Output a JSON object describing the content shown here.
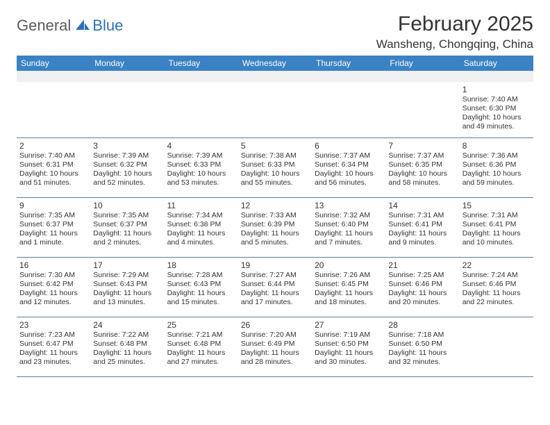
{
  "brand": {
    "general": "General",
    "blue": "Blue"
  },
  "title": "February 2025",
  "location": "Wansheng, Chongqing, China",
  "colors": {
    "header_bg": "#3a82c4",
    "header_text": "#ffffff",
    "border": "#5a7da0",
    "blank_row": "#f0f0f0",
    "text": "#333333",
    "logo_gray": "#5a5a5a",
    "logo_blue": "#2b72b8"
  },
  "typography": {
    "title_fontsize": 30,
    "location_fontsize": 17,
    "header_fontsize": 12,
    "daynum_fontsize": 12,
    "body_fontsize": 10.5,
    "font_family": "Arial"
  },
  "weekdays": [
    "Sunday",
    "Monday",
    "Tuesday",
    "Wednesday",
    "Thursday",
    "Friday",
    "Saturday"
  ],
  "weeks": [
    [
      null,
      null,
      null,
      null,
      null,
      null,
      {
        "n": "1",
        "sr": "Sunrise: 7:40 AM",
        "ss": "Sunset: 6:30 PM",
        "dl1": "Daylight: 10 hours",
        "dl2": "and 49 minutes."
      }
    ],
    [
      {
        "n": "2",
        "sr": "Sunrise: 7:40 AM",
        "ss": "Sunset: 6:31 PM",
        "dl1": "Daylight: 10 hours",
        "dl2": "and 51 minutes."
      },
      {
        "n": "3",
        "sr": "Sunrise: 7:39 AM",
        "ss": "Sunset: 6:32 PM",
        "dl1": "Daylight: 10 hours",
        "dl2": "and 52 minutes."
      },
      {
        "n": "4",
        "sr": "Sunrise: 7:39 AM",
        "ss": "Sunset: 6:33 PM",
        "dl1": "Daylight: 10 hours",
        "dl2": "and 53 minutes."
      },
      {
        "n": "5",
        "sr": "Sunrise: 7:38 AM",
        "ss": "Sunset: 6:33 PM",
        "dl1": "Daylight: 10 hours",
        "dl2": "and 55 minutes."
      },
      {
        "n": "6",
        "sr": "Sunrise: 7:37 AM",
        "ss": "Sunset: 6:34 PM",
        "dl1": "Daylight: 10 hours",
        "dl2": "and 56 minutes."
      },
      {
        "n": "7",
        "sr": "Sunrise: 7:37 AM",
        "ss": "Sunset: 6:35 PM",
        "dl1": "Daylight: 10 hours",
        "dl2": "and 58 minutes."
      },
      {
        "n": "8",
        "sr": "Sunrise: 7:36 AM",
        "ss": "Sunset: 6:36 PM",
        "dl1": "Daylight: 10 hours",
        "dl2": "and 59 minutes."
      }
    ],
    [
      {
        "n": "9",
        "sr": "Sunrise: 7:35 AM",
        "ss": "Sunset: 6:37 PM",
        "dl1": "Daylight: 11 hours",
        "dl2": "and 1 minute."
      },
      {
        "n": "10",
        "sr": "Sunrise: 7:35 AM",
        "ss": "Sunset: 6:37 PM",
        "dl1": "Daylight: 11 hours",
        "dl2": "and 2 minutes."
      },
      {
        "n": "11",
        "sr": "Sunrise: 7:34 AM",
        "ss": "Sunset: 6:38 PM",
        "dl1": "Daylight: 11 hours",
        "dl2": "and 4 minutes."
      },
      {
        "n": "12",
        "sr": "Sunrise: 7:33 AM",
        "ss": "Sunset: 6:39 PM",
        "dl1": "Daylight: 11 hours",
        "dl2": "and 5 minutes."
      },
      {
        "n": "13",
        "sr": "Sunrise: 7:32 AM",
        "ss": "Sunset: 6:40 PM",
        "dl1": "Daylight: 11 hours",
        "dl2": "and 7 minutes."
      },
      {
        "n": "14",
        "sr": "Sunrise: 7:31 AM",
        "ss": "Sunset: 6:41 PM",
        "dl1": "Daylight: 11 hours",
        "dl2": "and 9 minutes."
      },
      {
        "n": "15",
        "sr": "Sunrise: 7:31 AM",
        "ss": "Sunset: 6:41 PM",
        "dl1": "Daylight: 11 hours",
        "dl2": "and 10 minutes."
      }
    ],
    [
      {
        "n": "16",
        "sr": "Sunrise: 7:30 AM",
        "ss": "Sunset: 6:42 PM",
        "dl1": "Daylight: 11 hours",
        "dl2": "and 12 minutes."
      },
      {
        "n": "17",
        "sr": "Sunrise: 7:29 AM",
        "ss": "Sunset: 6:43 PM",
        "dl1": "Daylight: 11 hours",
        "dl2": "and 13 minutes."
      },
      {
        "n": "18",
        "sr": "Sunrise: 7:28 AM",
        "ss": "Sunset: 6:43 PM",
        "dl1": "Daylight: 11 hours",
        "dl2": "and 15 minutes."
      },
      {
        "n": "19",
        "sr": "Sunrise: 7:27 AM",
        "ss": "Sunset: 6:44 PM",
        "dl1": "Daylight: 11 hours",
        "dl2": "and 17 minutes."
      },
      {
        "n": "20",
        "sr": "Sunrise: 7:26 AM",
        "ss": "Sunset: 6:45 PM",
        "dl1": "Daylight: 11 hours",
        "dl2": "and 18 minutes."
      },
      {
        "n": "21",
        "sr": "Sunrise: 7:25 AM",
        "ss": "Sunset: 6:46 PM",
        "dl1": "Daylight: 11 hours",
        "dl2": "and 20 minutes."
      },
      {
        "n": "22",
        "sr": "Sunrise: 7:24 AM",
        "ss": "Sunset: 6:46 PM",
        "dl1": "Daylight: 11 hours",
        "dl2": "and 22 minutes."
      }
    ],
    [
      {
        "n": "23",
        "sr": "Sunrise: 7:23 AM",
        "ss": "Sunset: 6:47 PM",
        "dl1": "Daylight: 11 hours",
        "dl2": "and 23 minutes."
      },
      {
        "n": "24",
        "sr": "Sunrise: 7:22 AM",
        "ss": "Sunset: 6:48 PM",
        "dl1": "Daylight: 11 hours",
        "dl2": "and 25 minutes."
      },
      {
        "n": "25",
        "sr": "Sunrise: 7:21 AM",
        "ss": "Sunset: 6:48 PM",
        "dl1": "Daylight: 11 hours",
        "dl2": "and 27 minutes."
      },
      {
        "n": "26",
        "sr": "Sunrise: 7:20 AM",
        "ss": "Sunset: 6:49 PM",
        "dl1": "Daylight: 11 hours",
        "dl2": "and 28 minutes."
      },
      {
        "n": "27",
        "sr": "Sunrise: 7:19 AM",
        "ss": "Sunset: 6:50 PM",
        "dl1": "Daylight: 11 hours",
        "dl2": "and 30 minutes."
      },
      {
        "n": "28",
        "sr": "Sunrise: 7:18 AM",
        "ss": "Sunset: 6:50 PM",
        "dl1": "Daylight: 11 hours",
        "dl2": "and 32 minutes."
      },
      null
    ]
  ]
}
